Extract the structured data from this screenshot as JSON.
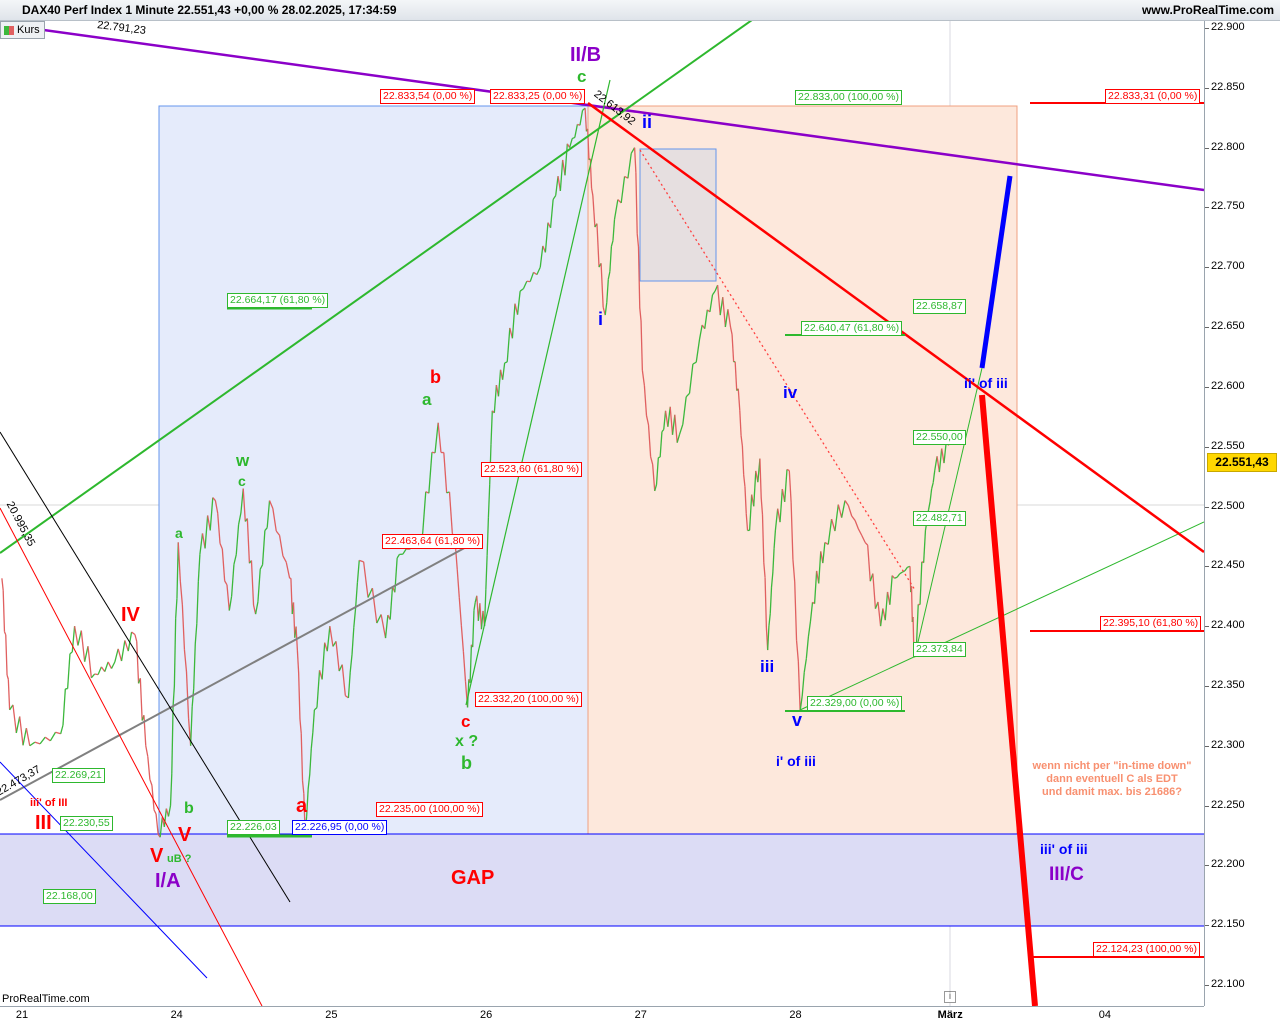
{
  "header": {
    "title": "DAX40 Perf Index 1 Minute 22.551,43 +0,00 % 28.02.2025, 17:34:59",
    "site": "www.ProRealTime.com",
    "legend": "Kurs",
    "watermark": "ProRealTime.com",
    "price_tag": "22.551,43"
  },
  "colors": {
    "up": "#3cb83c",
    "down": "#e06060",
    "purple": "#8b00c8",
    "green": "#2eb82e",
    "red": "#ff0000",
    "blue": "#0000ff",
    "gap": "#dcdcf5"
  },
  "chart_data": {
    "type": "line",
    "title": "DAX40 Perf Index 1 Minute",
    "x_ticks": [
      "21",
      "24",
      "25",
      "26",
      "27",
      "28",
      "März",
      "04"
    ],
    "y_ticks": [
      "22.900",
      "22.850",
      "22.800",
      "22.750",
      "22.700",
      "22.650",
      "22.600",
      "22.550",
      "22.500",
      "22.450",
      "22.400",
      "22.350",
      "22.300",
      "22.250",
      "22.200",
      "22.150",
      "22.100"
    ],
    "ylim": [
      22080,
      22915
    ],
    "series": [
      {
        "x_unit": "trading session index (0 = 21)",
        "points": [
          [
            -0.13,
            22440
          ],
          [
            -0.08,
            22330
          ],
          [
            0.05,
            22300
          ],
          [
            0.25,
            22310
          ],
          [
            0.34,
            22400
          ],
          [
            0.47,
            22360
          ],
          [
            0.6,
            22370
          ],
          [
            0.73,
            22393
          ],
          [
            0.8,
            22300
          ],
          [
            0.88,
            22226
          ],
          [
            0.96,
            22250
          ],
          [
            1.01,
            22470
          ],
          [
            1.09,
            22300
          ],
          [
            1.15,
            22460
          ],
          [
            1.25,
            22505
          ],
          [
            1.34,
            22413
          ],
          [
            1.43,
            22515
          ],
          [
            1.51,
            22410
          ],
          [
            1.6,
            22505
          ],
          [
            1.73,
            22440
          ],
          [
            1.78,
            22380
          ],
          [
            1.83,
            22227
          ],
          [
            1.89,
            22330
          ],
          [
            1.99,
            22400
          ],
          [
            2.11,
            22340
          ],
          [
            2.18,
            22455
          ],
          [
            2.35,
            22390
          ],
          [
            2.44,
            22460
          ],
          [
            2.57,
            22470
          ],
          [
            2.69,
            22570
          ],
          [
            2.8,
            22470
          ],
          [
            2.88,
            22332
          ],
          [
            2.93,
            22420
          ],
          [
            2.99,
            22400
          ],
          [
            3.04,
            22580
          ],
          [
            3.12,
            22620
          ],
          [
            3.22,
            22680
          ],
          [
            3.35,
            22700
          ],
          [
            3.45,
            22760
          ],
          [
            3.54,
            22800
          ],
          [
            3.64,
            22833
          ],
          [
            3.69,
            22760
          ],
          [
            3.77,
            22660
          ],
          [
            3.83,
            22740
          ],
          [
            3.96,
            22800
          ],
          [
            4.01,
            22614
          ],
          [
            4.09,
            22513
          ],
          [
            4.16,
            22580
          ],
          [
            4.25,
            22560
          ],
          [
            4.38,
            22640
          ],
          [
            4.48,
            22680
          ],
          [
            4.58,
            22650
          ],
          [
            4.64,
            22580
          ],
          [
            4.69,
            22480
          ],
          [
            4.77,
            22540
          ],
          [
            4.82,
            22380
          ],
          [
            4.87,
            22480
          ],
          [
            4.96,
            22530
          ],
          [
            5.03,
            22329
          ],
          [
            5.11,
            22420
          ],
          [
            5.19,
            22470
          ],
          [
            5.32,
            22505
          ],
          [
            5.45,
            22470
          ],
          [
            5.55,
            22400
          ],
          [
            5.64,
            22440
          ],
          [
            5.74,
            22450
          ],
          [
            5.77,
            22374
          ],
          [
            5.84,
            22480
          ],
          [
            5.9,
            22530
          ],
          [
            5.99,
            22551
          ]
        ]
      }
    ],
    "grid": true
  },
  "levels": {
    "l1": "22.833,54 (0,00 %)",
    "l2": "22.833,25 (0,00 %)",
    "l3": "22.833,00 (100,00 %)",
    "l4": "22.833,31 (0,00 %)",
    "l5": "22.664,17 (61,80 %)",
    "l6": "22.658,87",
    "l7": "22.640,47 (61,80 %)",
    "l8": "22.550,00",
    "l9": "22.523,60 (61,80 %)",
    "l10": "22.482,71",
    "l11": "22.463,64 (61,80 %)",
    "l12": "22.395,10 (61,80 %)",
    "l13": "22.373,84",
    "l14": "22.332,20 (100,00 %)",
    "l15": "22.329,00 (0,00 %)",
    "l16": "22.269,21",
    "l17": "22.235,00 (100,00 %)",
    "l18": "22.230,55",
    "l19": "22.226,03",
    "l20": "22.226,95 (0,00 %)",
    "l21": "22.168,00",
    "l22": "22.124,23 (100,00 %)",
    "d1": "22.791,23",
    "d2": "22.613,92",
    "d3": "20.995,35",
    "d4": "22.473,37"
  },
  "annotations": {
    "IIB": "II/B",
    "c1": "c",
    "ii": "ii",
    "i": "i",
    "iv": "iv",
    "iii": "iii",
    "v": "v",
    "i_of_iii": "i' of iii",
    "ii_of_iii": "ii' of iii",
    "iii_of_iii": "iii' of iii",
    "IIIC": "III/C",
    "b1": "b",
    "a1": "a",
    "w": "w",
    "c2": "c",
    "a2": "a",
    "IV": "IV",
    "III": "III",
    "iii_of_III": "iii' of III",
    "V1": "V",
    "V2": "V",
    "uB": "uB ?",
    "IA": "I/A",
    "b2": "b",
    "a3": "a",
    "c3": "c",
    "x": "x ?",
    "b3": "b",
    "GAP": "GAP",
    "note": [
      "wenn nicht per \"in-time down\"",
      "dann eventuell C als EDT",
      "und damit max. bis 21686?"
    ]
  }
}
